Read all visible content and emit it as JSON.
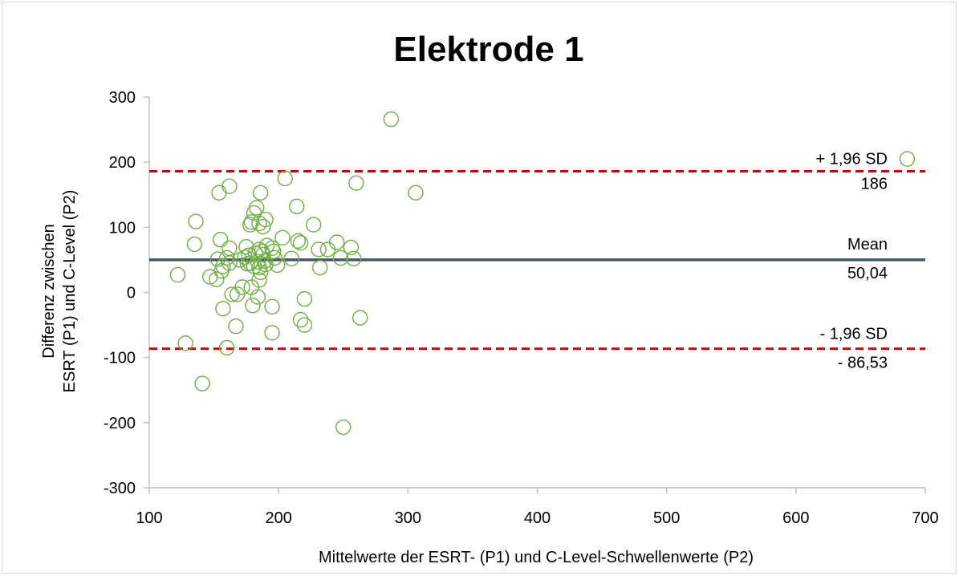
{
  "chart_data": {
    "type": "scatter",
    "title": "Elektrode 1",
    "xlabel": "Mittelwerte der ESRT- (P1) und C-Level-Schwellenwerte (P2)",
    "ylabel_line1": "Differenz zwischen",
    "ylabel_line2": "ESRT (P1) und C-Level (P2)",
    "xlim": [
      100,
      700
    ],
    "ylim": [
      -300,
      300
    ],
    "x_ticks": [
      100,
      200,
      300,
      400,
      500,
      600,
      700
    ],
    "y_ticks": [
      300,
      200,
      100,
      0,
      -100,
      -200,
      -300
    ],
    "grid": false,
    "marker": "open-circle",
    "colors": {
      "points": "#70ad47",
      "mean": "#44546a",
      "limits": "#c00000",
      "axis": "#bfbfbf"
    },
    "reference_lines": {
      "upper": {
        "label": "+ 1,96 SD",
        "value_label": "186",
        "value": 186
      },
      "mean": {
        "label": "Mean",
        "value_label": "50,04",
        "value": 50.04
      },
      "lower": {
        "label": "- 1,96 SD",
        "value_label": "- 86,53",
        "value": -86.53
      }
    },
    "points": [
      [
        287,
        266
      ],
      [
        686,
        205
      ],
      [
        205,
        175
      ],
      [
        260,
        168
      ],
      [
        162,
        163
      ],
      [
        154,
        153
      ],
      [
        186,
        153
      ],
      [
        306,
        153
      ],
      [
        214,
        132
      ],
      [
        183,
        130
      ],
      [
        181,
        122
      ],
      [
        190,
        112
      ],
      [
        136,
        109
      ],
      [
        179,
        108
      ],
      [
        185,
        106
      ],
      [
        178,
        104
      ],
      [
        227,
        104
      ],
      [
        188,
        101
      ],
      [
        203,
        84
      ],
      [
        155,
        81
      ],
      [
        215,
        79
      ],
      [
        217,
        76
      ],
      [
        245,
        77
      ],
      [
        135,
        74
      ],
      [
        191,
        72
      ],
      [
        175,
        70
      ],
      [
        162,
        68
      ],
      [
        195,
        68
      ],
      [
        185,
        66
      ],
      [
        231,
        66
      ],
      [
        238,
        66
      ],
      [
        256,
        69
      ],
      [
        187,
        63
      ],
      [
        196,
        63
      ],
      [
        182,
        60
      ],
      [
        188,
        58
      ],
      [
        177,
        57
      ],
      [
        160,
        53
      ],
      [
        174,
        54
      ],
      [
        197,
        53
      ],
      [
        210,
        52
      ],
      [
        248,
        53
      ],
      [
        258,
        52
      ],
      [
        153,
        51
      ],
      [
        170,
        50
      ],
      [
        189,
        48
      ],
      [
        184,
        47
      ],
      [
        178,
        45
      ],
      [
        162,
        45
      ],
      [
        176,
        44
      ],
      [
        190,
        43
      ],
      [
        199,
        42
      ],
      [
        157,
        40
      ],
      [
        181,
        40
      ],
      [
        185,
        38
      ],
      [
        232,
        38
      ],
      [
        156,
        33
      ],
      [
        186,
        31
      ],
      [
        147,
        24
      ],
      [
        122,
        27
      ],
      [
        152,
        20
      ],
      [
        185,
        19
      ],
      [
        172,
        8
      ],
      [
        179,
        8
      ],
      [
        164,
        -3
      ],
      [
        168,
        -3
      ],
      [
        184,
        -7
      ],
      [
        220,
        -10
      ],
      [
        180,
        -20
      ],
      [
        157,
        -25
      ],
      [
        195,
        -22
      ],
      [
        217,
        -42
      ],
      [
        263,
        -39
      ],
      [
        167,
        -52
      ],
      [
        220,
        -50
      ],
      [
        195,
        -62
      ],
      [
        128,
        -78
      ],
      [
        160,
        -85
      ],
      [
        141,
        -140
      ],
      [
        250,
        -207
      ]
    ]
  }
}
